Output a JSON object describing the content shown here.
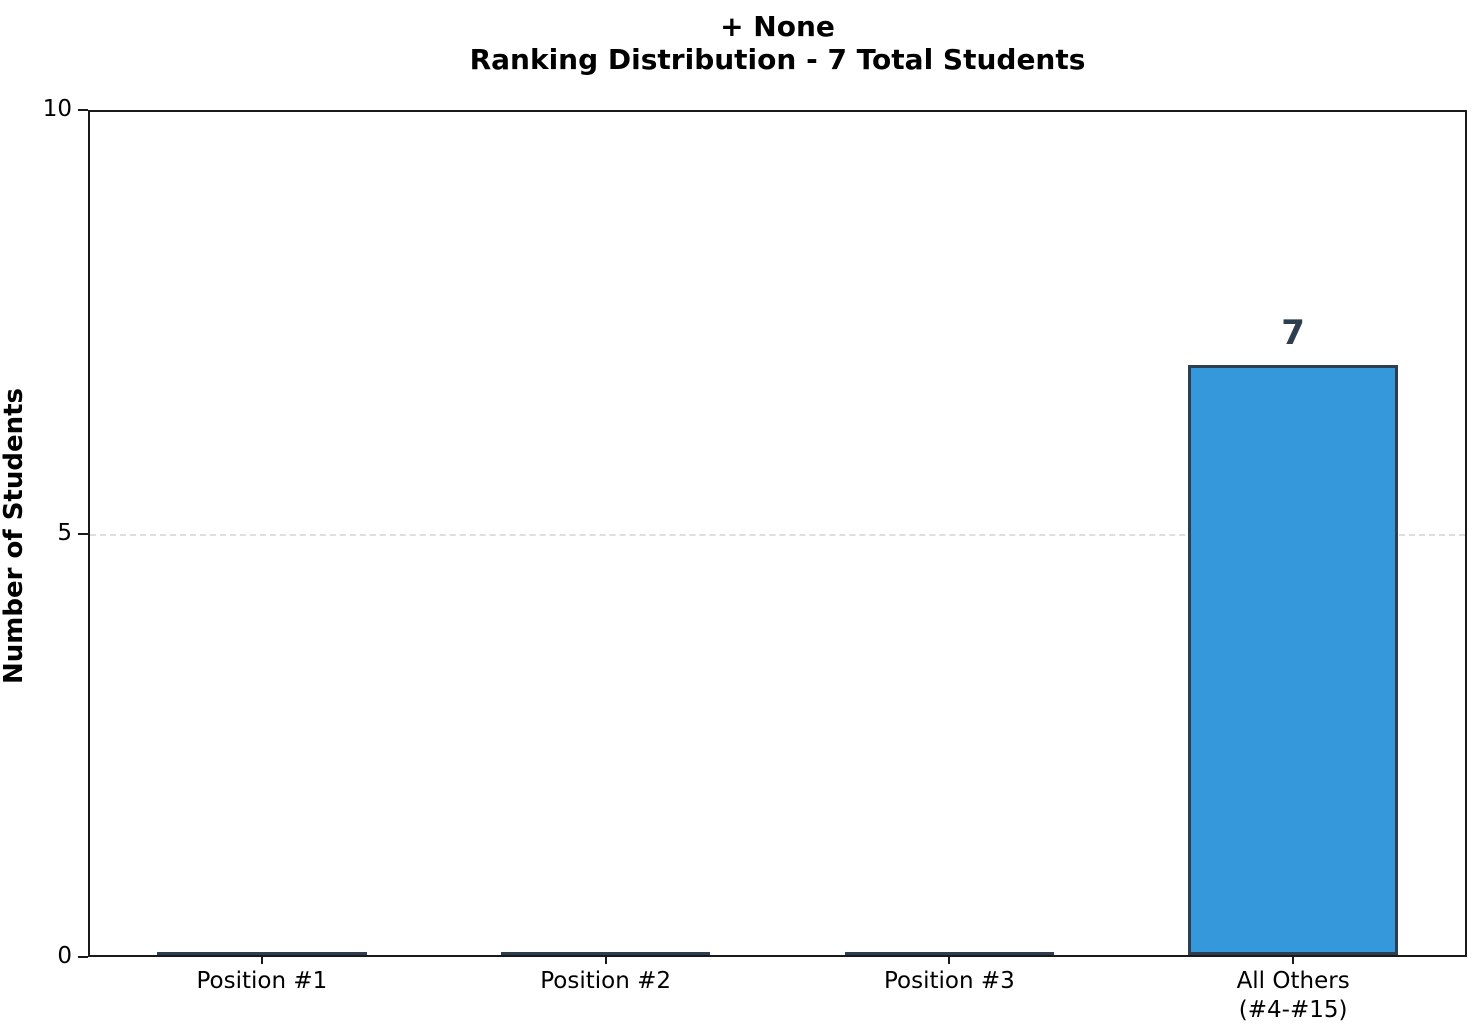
{
  "chart_data": {
    "type": "bar",
    "title_line1": "+ None",
    "title_line2": "Ranking Distribution - 7 Total Students",
    "ylabel": "Number of Students",
    "xlabel": "",
    "categories": [
      "Position #1",
      "Position #2",
      "Position #3",
      "All Others\n(#4-#15)"
    ],
    "values": [
      0,
      0,
      0,
      7
    ],
    "bar_value_labels": [
      "",
      "",
      "",
      "7"
    ],
    "total_students": 7,
    "ylim": [
      0,
      10
    ],
    "yticks": [
      "0",
      "5",
      "10"
    ],
    "grid": "horizontal dashed gridline at y=5",
    "legend": "none",
    "colors": {
      "bar_fill": "#3498db",
      "bar_edge": "#2c3e50",
      "value_label": "#2c3e50",
      "gridline": "#dedede",
      "spine": "#1a1a1a",
      "text": "#000000"
    }
  }
}
